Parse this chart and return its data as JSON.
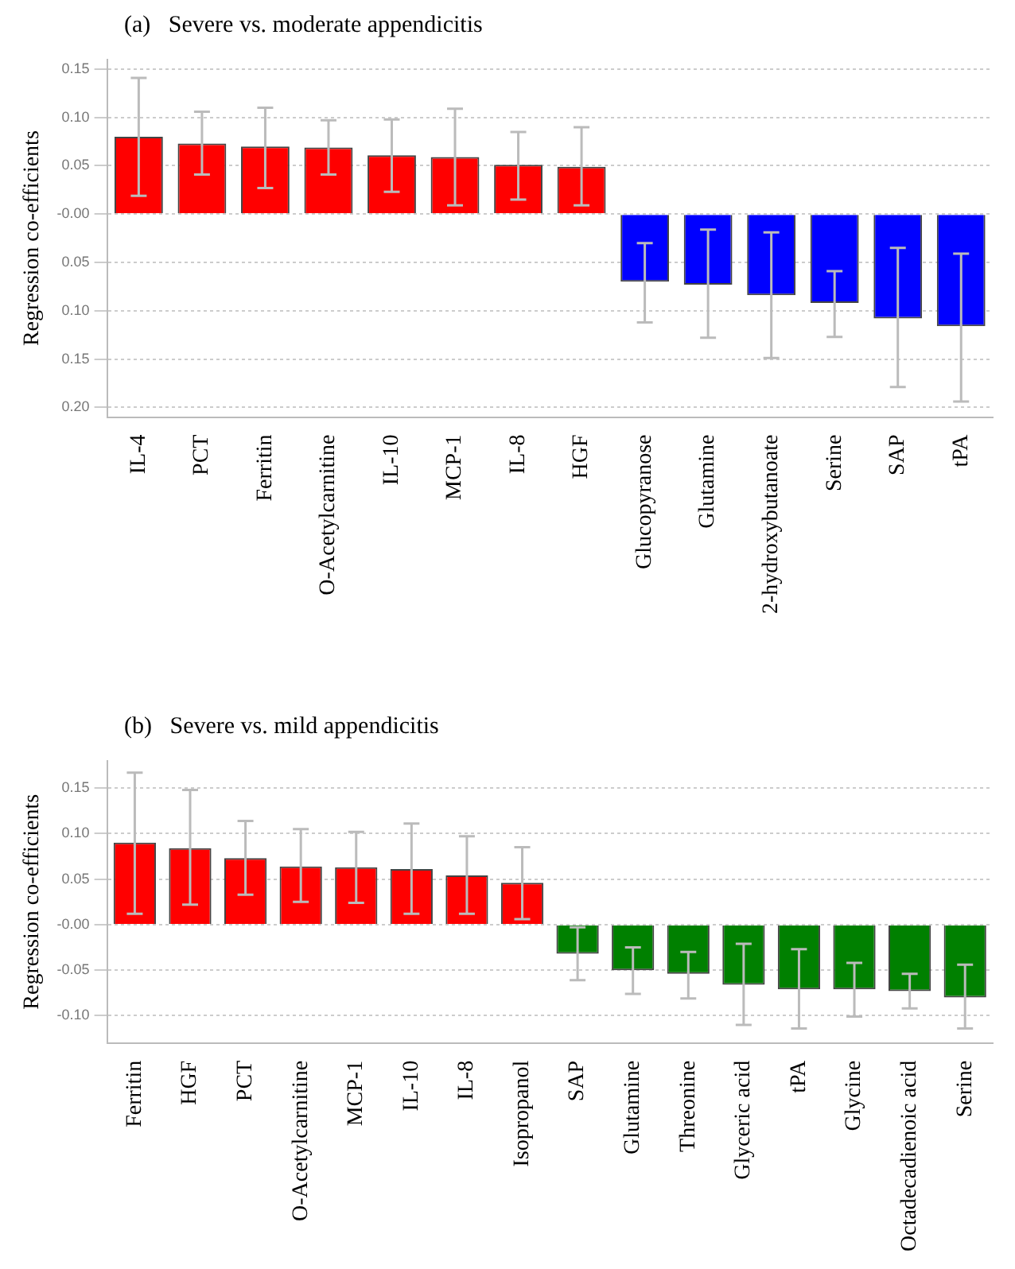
{
  "chart_data": [
    {
      "type": "bar",
      "title": "(a)   Severe vs. moderate appendicitis",
      "ylabel": "Regression co-efficients",
      "categories": [
        "IL-4",
        "PCT",
        "Ferritin",
        "O-Acetylcarnitine",
        "IL-10",
        "MCP-1",
        "IL-8",
        "HGF",
        "Glucopyranose",
        "Glutamine",
        "2-hydroxybutanoate",
        "Serine",
        "SAP",
        "tPA"
      ],
      "values": [
        0.08,
        0.073,
        0.07,
        0.069,
        0.061,
        0.059,
        0.051,
        0.049,
        -0.07,
        -0.073,
        -0.084,
        -0.092,
        -0.108,
        -0.116
      ],
      "errors": [
        [
          0.019,
          0.141
        ],
        [
          0.041,
          0.106
        ],
        [
          0.027,
          0.11
        ],
        [
          0.041,
          0.097
        ],
        [
          0.023,
          0.098
        ],
        [
          0.009,
          0.109
        ],
        [
          0.015,
          0.085
        ],
        [
          0.009,
          0.09
        ],
        [
          -0.112,
          -0.03
        ],
        [
          -0.128,
          -0.016
        ],
        [
          -0.149,
          -0.019
        ],
        [
          -0.127,
          -0.059
        ],
        [
          -0.179,
          -0.035
        ],
        [
          -0.194,
          -0.041
        ]
      ],
      "colors": [
        "#ff0000",
        "#ff0000",
        "#ff0000",
        "#ff0000",
        "#ff0000",
        "#ff0000",
        "#ff0000",
        "#ff0000",
        "#0000ff",
        "#0000ff",
        "#0000ff",
        "#0000ff",
        "#0000ff",
        "#0000ff"
      ],
      "ylim": [
        -0.21,
        0.16
      ],
      "yticks": [
        {
          "value": 0.15,
          "label": "0.15"
        },
        {
          "value": 0.1,
          "label": "0.10"
        },
        {
          "value": 0.05,
          "label": "0.05"
        },
        {
          "value": 0,
          "label": "-0.00"
        },
        {
          "value": -0.05,
          "label": "0.05"
        },
        {
          "value": -0.1,
          "label": "0.10"
        },
        {
          "value": -0.15,
          "label": "0.15"
        },
        {
          "value": -0.2,
          "label": "0.20"
        }
      ],
      "grid": "y",
      "legend": false
    },
    {
      "type": "bar",
      "title": "(b)   Severe vs. mild appendicitis",
      "ylabel": "Regression co-efficients",
      "categories": [
        "Ferritin",
        "HGF",
        "PCT",
        "O-Acetylcarnitine",
        "MCP-1",
        "IL-10",
        "IL-8",
        "Isopropanol",
        "SAP",
        "Glutamine",
        "Threonine",
        "Glyceric acid",
        "tPA",
        "Glycine",
        "Octadecadienoic acid",
        "Serine"
      ],
      "values": [
        0.09,
        0.084,
        0.073,
        0.064,
        0.063,
        0.061,
        0.054,
        0.046,
        -0.032,
        -0.05,
        -0.054,
        -0.066,
        -0.071,
        -0.071,
        -0.073,
        -0.08
      ],
      "errors": [
        [
          0.012,
          0.167
        ],
        [
          0.022,
          0.148
        ],
        [
          0.033,
          0.114
        ],
        [
          0.025,
          0.105
        ],
        [
          0.024,
          0.102
        ],
        [
          0.012,
          0.111
        ],
        [
          0.012,
          0.097
        ],
        [
          0.006,
          0.085
        ],
        [
          -0.061,
          -0.003
        ],
        [
          -0.076,
          -0.025
        ],
        [
          -0.081,
          -0.03
        ],
        [
          -0.11,
          -0.021
        ],
        [
          -0.114,
          -0.027
        ],
        [
          -0.101,
          -0.042
        ],
        [
          -0.092,
          -0.054
        ],
        [
          -0.114,
          -0.044
        ]
      ],
      "colors": [
        "#ff0000",
        "#ff0000",
        "#ff0000",
        "#ff0000",
        "#ff0000",
        "#ff0000",
        "#ff0000",
        "#ff0000",
        "#008000",
        "#008000",
        "#008000",
        "#008000",
        "#008000",
        "#008000",
        "#008000",
        "#008000"
      ],
      "ylim": [
        -0.13,
        0.18
      ],
      "yticks": [
        {
          "value": 0.15,
          "label": "0.15"
        },
        {
          "value": 0.1,
          "label": "0.10"
        },
        {
          "value": 0.05,
          "label": "0.05"
        },
        {
          "value": 0,
          "label": "-0.00"
        },
        {
          "value": -0.05,
          "label": "-0.05"
        },
        {
          "value": -0.1,
          "label": "-0.10"
        }
      ],
      "grid": "y",
      "legend": false
    }
  ]
}
